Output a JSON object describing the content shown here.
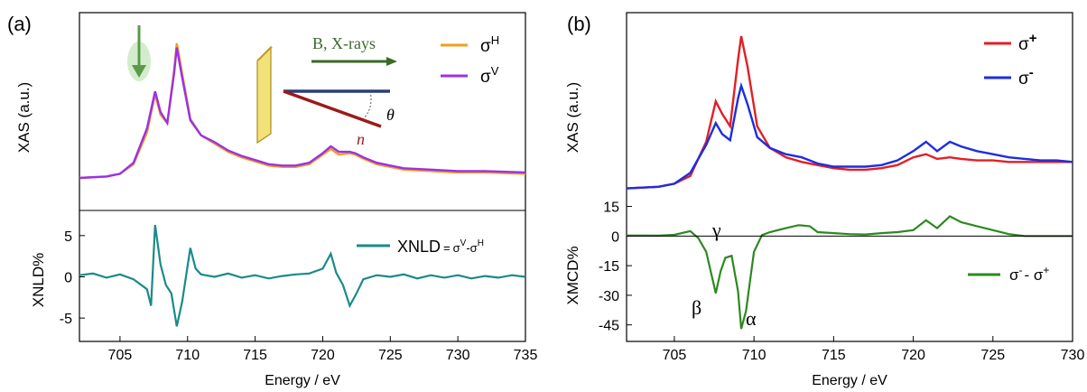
{
  "colors": {
    "sigma_h": "#f39c1c",
    "sigma_v": "#9b30e8",
    "xnld": "#1a8a8a",
    "sigma_plus": "#e41e25",
    "sigma_minus": "#1c2ee0",
    "xmcd": "#2b8a1e",
    "arrow_green": "#5cb84a",
    "sample_fill": "#f7e27a",
    "sample_edge": "#b08a1a",
    "beam_blue": "#2a3e7a",
    "normal_red": "#9b1a1a",
    "inset_arrow": "#3a6a28"
  },
  "chart_data": [
    {
      "panel": "(a)",
      "type": "line",
      "xlabel": "Energy / eV",
      "xlim": [
        702,
        735
      ],
      "xticks": [
        705,
        710,
        715,
        720,
        725,
        730,
        735
      ],
      "top": {
        "ylabel": "XAS (a.u.)",
        "ylim": [
          0,
          1.0
        ],
        "series": [
          {
            "name": "H",
            "prefix": "σ",
            "points": [
              [
                702,
                0.02
              ],
              [
                704,
                0.03
              ],
              [
                705,
                0.05
              ],
              [
                706,
                0.12
              ],
              [
                707,
                0.35
              ],
              [
                707.6,
                0.63
              ],
              [
                708.0,
                0.48
              ],
              [
                708.5,
                0.42
              ],
              [
                709.0,
                0.8
              ],
              [
                709.2,
                1.0
              ],
              [
                709.6,
                0.78
              ],
              [
                710.2,
                0.45
              ],
              [
                711,
                0.33
              ],
              [
                712,
                0.27
              ],
              [
                713,
                0.21
              ],
              [
                714,
                0.17
              ],
              [
                715,
                0.14
              ],
              [
                716,
                0.11
              ],
              [
                717,
                0.1
              ],
              [
                718,
                0.1
              ],
              [
                719,
                0.12
              ],
              [
                720,
                0.19
              ],
              [
                720.6,
                0.23
              ],
              [
                721.2,
                0.19
              ],
              [
                722.0,
                0.2
              ],
              [
                722.4,
                0.19
              ],
              [
                723,
                0.16
              ],
              [
                724,
                0.12
              ],
              [
                725,
                0.1
              ],
              [
                726,
                0.08
              ],
              [
                728,
                0.07
              ],
              [
                730,
                0.06
              ],
              [
                732,
                0.06
              ],
              [
                735,
                0.05
              ]
            ]
          },
          {
            "name": "V",
            "prefix": "σ",
            "points": [
              [
                702,
                0.02
              ],
              [
                704,
                0.03
              ],
              [
                705,
                0.05
              ],
              [
                706,
                0.13
              ],
              [
                707,
                0.38
              ],
              [
                707.6,
                0.65
              ],
              [
                708.0,
                0.5
              ],
              [
                708.5,
                0.42
              ],
              [
                709.0,
                0.78
              ],
              [
                709.2,
                0.97
              ],
              [
                709.6,
                0.75
              ],
              [
                710.2,
                0.44
              ],
              [
                711,
                0.33
              ],
              [
                712,
                0.28
              ],
              [
                713,
                0.22
              ],
              [
                714,
                0.18
              ],
              [
                715,
                0.15
              ],
              [
                716,
                0.12
              ],
              [
                717,
                0.11
              ],
              [
                718,
                0.11
              ],
              [
                719,
                0.13
              ],
              [
                720,
                0.2
              ],
              [
                720.6,
                0.25
              ],
              [
                721.2,
                0.21
              ],
              [
                722.0,
                0.21
              ],
              [
                722.4,
                0.2
              ],
              [
                723,
                0.17
              ],
              [
                724,
                0.13
              ],
              [
                725,
                0.11
              ],
              [
                726,
                0.09
              ],
              [
                728,
                0.08
              ],
              [
                730,
                0.07
              ],
              [
                732,
                0.07
              ],
              [
                735,
                0.06
              ]
            ]
          }
        ]
      },
      "bottom": {
        "ylabel": "XNLD%",
        "ylim": [
          -7.5,
          7.5
        ],
        "yticks": [
          5,
          0,
          -5
        ],
        "series": [
          {
            "name": "XNLD",
            "legend_eq": "=",
            "legend_v": "V",
            "legend_h": "H",
            "points": [
              [
                702,
                0.2
              ],
              [
                703,
                0.4
              ],
              [
                704,
                -0.1
              ],
              [
                705,
                0.3
              ],
              [
                706,
                -0.3
              ],
              [
                707,
                -1.5
              ],
              [
                707.3,
                -3.5
              ],
              [
                707.6,
                6.3
              ],
              [
                708.0,
                1.5
              ],
              [
                708.4,
                -1.0
              ],
              [
                708.8,
                -2.0
              ],
              [
                709.2,
                -6.0
              ],
              [
                709.6,
                -3.0
              ],
              [
                710.2,
                3.5
              ],
              [
                710.6,
                1.0
              ],
              [
                711,
                0.3
              ],
              [
                712,
                0.0
              ],
              [
                713,
                0.4
              ],
              [
                714,
                -0.1
              ],
              [
                715,
                0.2
              ],
              [
                716,
                -0.2
              ],
              [
                717,
                0.1
              ],
              [
                718,
                0.3
              ],
              [
                719,
                0.4
              ],
              [
                720,
                1.0
              ],
              [
                720.6,
                2.8
              ],
              [
                721.0,
                0.5
              ],
              [
                721.5,
                -1.0
              ],
              [
                722.0,
                -3.5
              ],
              [
                722.5,
                -2.0
              ],
              [
                723,
                -0.3
              ],
              [
                724,
                0.2
              ],
              [
                725,
                0.0
              ],
              [
                726,
                0.3
              ],
              [
                727,
                -0.2
              ],
              [
                728,
                0.2
              ],
              [
                729,
                -0.1
              ],
              [
                730,
                0.2
              ],
              [
                731,
                -0.2
              ],
              [
                732,
                0.1
              ],
              [
                733,
                -0.1
              ],
              [
                734,
                0.2
              ],
              [
                735,
                0.0
              ]
            ]
          }
        ]
      },
      "inset": {
        "label_beam": "B, X-rays",
        "label_normal": "n",
        "label_angle": "θ"
      },
      "panel_label": "(a)"
    },
    {
      "panel": "(b)",
      "type": "line",
      "xlabel": "Energy / eV",
      "xlim": [
        702,
        730
      ],
      "xticks": [
        705,
        710,
        715,
        720,
        725,
        730
      ],
      "top": {
        "ylabel": "XAS (a.u.)",
        "ylim": [
          0,
          1.0
        ],
        "series": [
          {
            "name": "+",
            "prefix": "σ",
            "points": [
              [
                702,
                0.02
              ],
              [
                704,
                0.03
              ],
              [
                705,
                0.05
              ],
              [
                706,
                0.1
              ],
              [
                707,
                0.32
              ],
              [
                707.6,
                0.58
              ],
              [
                708.0,
                0.5
              ],
              [
                708.5,
                0.42
              ],
              [
                709.0,
                0.85
              ],
              [
                709.2,
                1.0
              ],
              [
                709.6,
                0.8
              ],
              [
                710.2,
                0.42
              ],
              [
                711,
                0.28
              ],
              [
                712,
                0.22
              ],
              [
                713,
                0.19
              ],
              [
                714,
                0.17
              ],
              [
                715,
                0.15
              ],
              [
                716,
                0.14
              ],
              [
                717,
                0.14
              ],
              [
                718,
                0.15
              ],
              [
                719,
                0.17
              ],
              [
                720,
                0.22
              ],
              [
                720.8,
                0.24
              ],
              [
                721.5,
                0.21
              ],
              [
                722.3,
                0.22
              ],
              [
                723,
                0.21
              ],
              [
                724,
                0.2
              ],
              [
                725,
                0.2
              ],
              [
                726,
                0.19
              ],
              [
                727,
                0.19
              ],
              [
                728,
                0.19
              ],
              [
                729,
                0.19
              ],
              [
                730,
                0.19
              ]
            ]
          },
          {
            "name": "-",
            "prefix": "σ",
            "points": [
              [
                702,
                0.02
              ],
              [
                704,
                0.03
              ],
              [
                705,
                0.05
              ],
              [
                706,
                0.12
              ],
              [
                707,
                0.3
              ],
              [
                707.6,
                0.44
              ],
              [
                708.0,
                0.37
              ],
              [
                708.5,
                0.33
              ],
              [
                709.0,
                0.6
              ],
              [
                709.2,
                0.68
              ],
              [
                709.6,
                0.56
              ],
              [
                710.2,
                0.35
              ],
              [
                711,
                0.28
              ],
              [
                712,
                0.24
              ],
              [
                713,
                0.22
              ],
              [
                714,
                0.18
              ],
              [
                715,
                0.16
              ],
              [
                716,
                0.16
              ],
              [
                717,
                0.16
              ],
              [
                718,
                0.17
              ],
              [
                719,
                0.2
              ],
              [
                720,
                0.26
              ],
              [
                720.8,
                0.32
              ],
              [
                721.5,
                0.26
              ],
              [
                722.3,
                0.32
              ],
              [
                723,
                0.29
              ],
              [
                724,
                0.26
              ],
              [
                725,
                0.24
              ],
              [
                726,
                0.22
              ],
              [
                727,
                0.21
              ],
              [
                728,
                0.2
              ],
              [
                729,
                0.2
              ],
              [
                730,
                0.19
              ]
            ]
          }
        ]
      },
      "bottom": {
        "ylabel": "XMCD%",
        "ylim": [
          -52,
          18
        ],
        "yticks": [
          15,
          0,
          -15,
          -30,
          -45
        ],
        "series": [
          {
            "name": "XMCD",
            "points": [
              [
                702,
                0.3
              ],
              [
                704,
                0.2
              ],
              [
                705,
                0.6
              ],
              [
                706,
                2.5
              ],
              [
                706.5,
                -1
              ],
              [
                707,
                -8
              ],
              [
                707.4,
                -22
              ],
              [
                707.6,
                -29
              ],
              [
                707.9,
                -18
              ],
              [
                708.2,
                -11
              ],
              [
                708.6,
                -10
              ],
              [
                709.0,
                -28
              ],
              [
                709.2,
                -47
              ],
              [
                709.5,
                -38
              ],
              [
                710.0,
                -8
              ],
              [
                710.5,
                0.5
              ],
              [
                711,
                2
              ],
              [
                712,
                4
              ],
              [
                712.8,
                5.5
              ],
              [
                713.5,
                5
              ],
              [
                714,
                2
              ],
              [
                715,
                1.5
              ],
              [
                716,
                1
              ],
              [
                717,
                0.8
              ],
              [
                718,
                1.5
              ],
              [
                719,
                2
              ],
              [
                720,
                3
              ],
              [
                720.8,
                8
              ],
              [
                721.5,
                4
              ],
              [
                722.3,
                10
              ],
              [
                723,
                7
              ],
              [
                724,
                5
              ],
              [
                725,
                3
              ],
              [
                726,
                1
              ],
              [
                727,
                0
              ],
              [
                728,
                0
              ],
              [
                730,
                0
              ]
            ]
          }
        ]
      },
      "annotations": {
        "gamma": "γ",
        "beta": "β",
        "alpha": "α"
      },
      "legend_bottom": {
        "prefix1": "σ",
        "sup1": "-",
        "sep": "- ",
        "prefix2": "σ",
        "sup2": "+"
      },
      "panel_label": "(b)"
    }
  ]
}
